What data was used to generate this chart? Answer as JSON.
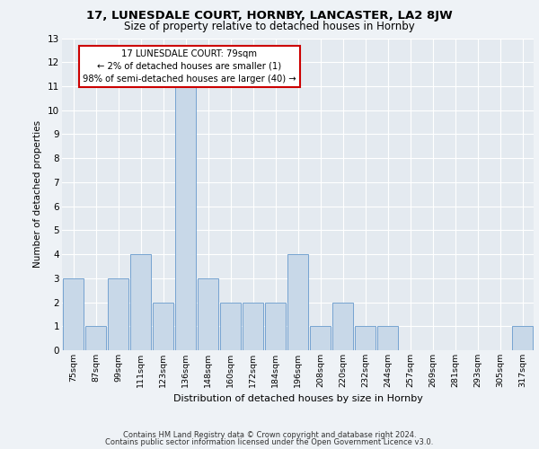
{
  "title_line1": "17, LUNESDALE COURT, HORNBY, LANCASTER, LA2 8JW",
  "title_line2": "Size of property relative to detached houses in Hornby",
  "xlabel": "Distribution of detached houses by size in Hornby",
  "ylabel": "Number of detached properties",
  "categories": [
    "75sqm",
    "87sqm",
    "99sqm",
    "111sqm",
    "123sqm",
    "136sqm",
    "148sqm",
    "160sqm",
    "172sqm",
    "184sqm",
    "196sqm",
    "208sqm",
    "220sqm",
    "232sqm",
    "244sqm",
    "257sqm",
    "269sqm",
    "281sqm",
    "293sqm",
    "305sqm",
    "317sqm"
  ],
  "values": [
    3,
    1,
    3,
    4,
    2,
    11,
    3,
    2,
    2,
    2,
    4,
    1,
    2,
    1,
    1,
    0,
    0,
    0,
    0,
    0,
    1
  ],
  "bar_color": "#c8d8e8",
  "bar_edge_color": "#6699cc",
  "annotation_text": "17 LUNESDALE COURT: 79sqm\n← 2% of detached houses are smaller (1)\n98% of semi-detached houses are larger (40) →",
  "annotation_box_color": "#ffffff",
  "annotation_box_edge_color": "#cc0000",
  "ylim": [
    0,
    13
  ],
  "yticks": [
    0,
    1,
    2,
    3,
    4,
    5,
    6,
    7,
    8,
    9,
    10,
    11,
    12,
    13
  ],
  "footer_line1": "Contains HM Land Registry data © Crown copyright and database right 2024.",
  "footer_line2": "Contains public sector information licensed under the Open Government Licence v3.0.",
  "bg_color": "#eef2f6",
  "plot_bg_color": "#e4eaf0",
  "grid_color": "#ffffff"
}
